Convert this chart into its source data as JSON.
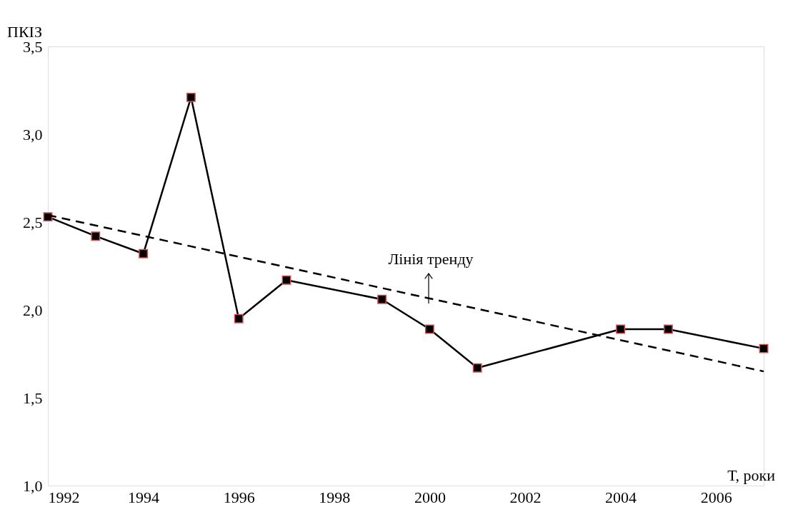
{
  "chart_data": {
    "type": "line",
    "xlabel": "Т, роки",
    "ylabel": "ПКІЗ",
    "x": [
      1992,
      1993,
      1994,
      1995,
      1996,
      1997,
      1999,
      2000,
      2001,
      2004,
      2005,
      2007
    ],
    "series": [
      {
        "color": "#000000",
        "marker": "square",
        "line_style": "solid",
        "values": [
          2.53,
          2.42,
          2.32,
          3.21,
          1.95,
          2.17,
          2.06,
          1.89,
          1.67,
          1.89,
          1.89,
          1.78
        ]
      },
      {
        "type": "line",
        "x": [
          1992,
          2007
        ],
        "color": "#000000",
        "marker": "none",
        "line_style": "dashed",
        "values": [
          2.54,
          1.65
        ]
      }
    ],
    "xlim": [
      1992,
      2007
    ],
    "xticks": [
      1992,
      1994,
      1996,
      1998,
      2000,
      2002,
      2004,
      2006
    ],
    "ylim": [
      1.0,
      3.5
    ],
    "yticks": [
      {
        "value": 1.0,
        "label": "1,0"
      },
      {
        "value": 1.5,
        "label": "1,5"
      },
      {
        "value": 2.0,
        "label": "2,0"
      },
      {
        "value": 2.5,
        "label": "2,5"
      },
      {
        "value": 3.0,
        "label": "3,0"
      },
      {
        "value": 3.5,
        "label": "3,5"
      }
    ],
    "grid": false,
    "annotations": [
      "Лінія тренду"
    ]
  }
}
